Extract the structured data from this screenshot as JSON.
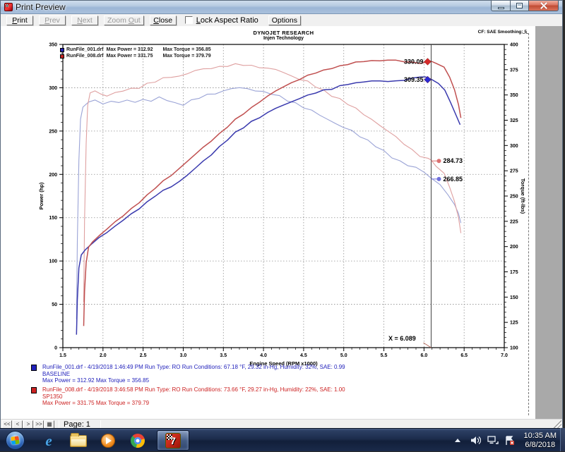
{
  "window": {
    "title": "Print Preview"
  },
  "toolbar": {
    "print": {
      "accel": "P",
      "rest": "rint"
    },
    "prev": {
      "accel": "P",
      "rest": "rev"
    },
    "next": {
      "accel": "N",
      "rest": "ext"
    },
    "zoom_out": {
      "pre": "Zoom ",
      "accel": "O",
      "rest": "ut"
    },
    "close": {
      "accel": "C",
      "rest": "lose"
    },
    "lock_aspect": {
      "accel": "L",
      "rest": "ock Aspect Ratio"
    },
    "options": "Options"
  },
  "statusbar": {
    "nav": [
      "<<",
      "<",
      ">",
      ">>"
    ],
    "page_icon": "▦",
    "page_label": "Page: 1"
  },
  "taskbar": {
    "ie_glyph": "e",
    "winpep_glyph": "7",
    "clock_time": "10:35 AM",
    "clock_date": "6/8/2018"
  },
  "page": {
    "info_blocks": [
      {
        "color": "#2222bb",
        "line1": "RunFile_001.drf - 4/19/2018 1:46:49 PM  Run Type: RO  Run Conditions: 67.18 °F, 29.32 in-Hg,  Humidity:  32%, SAE: 0.99",
        "line2": "BASELINE",
        "line3": "Max Power = 312.92  Max Torque = 356.85"
      },
      {
        "color": "#cc2222",
        "line1": "RunFile_008.drf - 4/19/2018 3:46:58 PM  Run Type: RO  Run Conditions: 73.66 °F, 29.27 in-Hg,  Humidity:  22%, SAE: 1.00",
        "line2": "SP1350",
        "line3": "Max Power = 331.75  Max Torque = 379.79"
      }
    ]
  },
  "chart_data": {
    "type": "line",
    "title": "DYNOJET RESEARCH",
    "subtitle": "Injen Technology",
    "corner_note": "CF: SAE  Smoothing: 5",
    "xlabel": "Engine Speed (RPM x1000)",
    "ylabel_left": "Power (hp)",
    "ylabel_right": "Torque (ft-lbs)",
    "xlim": [
      1.5,
      7.0
    ],
    "xtick_step": 0.5,
    "xminor_step": 0.1,
    "ylim_left": [
      0,
      350
    ],
    "ytick_left": 50,
    "yminor_left": 10,
    "ylim_right": [
      100,
      400
    ],
    "ytick_right": 25,
    "yminor_right": 5,
    "grid": true,
    "cursor_x": 6.089,
    "cursor_label": "X = 6.089",
    "legend_position": "top-left",
    "legend": [
      {
        "color": "#2323b4",
        "file": "RunFile_001.drf",
        "power_text": "Max Power = 312.92",
        "torque_text": "Max Torque = 356.85"
      },
      {
        "color": "#c22323",
        "file": "RunFile_008.drf",
        "power_text": "Max Power = 331.75",
        "torque_text": "Max Torque = 379.79"
      }
    ],
    "callouts": [
      {
        "text": "330.09",
        "axis": "left",
        "value": 330.09,
        "side": "left",
        "shape": "diamond",
        "color": "#d42a2a"
      },
      {
        "text": "309.35",
        "axis": "left",
        "value": 309.35,
        "side": "left",
        "shape": "diamond",
        "color": "#2a2ad4"
      },
      {
        "text": "284.73",
        "axis": "right",
        "value": 284.73,
        "side": "right",
        "shape": "dot",
        "color": "#dc7070"
      },
      {
        "text": "266.85",
        "axis": "right",
        "value": 266.85,
        "side": "right",
        "shape": "dot",
        "color": "#7070dc"
      }
    ],
    "series": [
      {
        "name": "blue_torque",
        "axis": "right",
        "color": "#9aa3d6",
        "width": 1.1,
        "points": [
          [
            1.67,
            128
          ],
          [
            1.68,
            205
          ],
          [
            1.7,
            285
          ],
          [
            1.72,
            326
          ],
          [
            1.75,
            338
          ],
          [
            1.82,
            343
          ],
          [
            1.9,
            345
          ],
          [
            2.0,
            341
          ],
          [
            2.1,
            344
          ],
          [
            2.2,
            342
          ],
          [
            2.3,
            345
          ],
          [
            2.4,
            343
          ],
          [
            2.5,
            346
          ],
          [
            2.6,
            344
          ],
          [
            2.7,
            347
          ],
          [
            2.8,
            345
          ],
          [
            2.9,
            342
          ],
          [
            3.0,
            341
          ],
          [
            3.1,
            344
          ],
          [
            3.2,
            347
          ],
          [
            3.3,
            350
          ],
          [
            3.4,
            352
          ],
          [
            3.5,
            354
          ],
          [
            3.6,
            356
          ],
          [
            3.7,
            356.85
          ],
          [
            3.8,
            356
          ],
          [
            3.9,
            355
          ],
          [
            4.0,
            353
          ],
          [
            4.1,
            351
          ],
          [
            4.2,
            348
          ],
          [
            4.3,
            345
          ],
          [
            4.4,
            342
          ],
          [
            4.5,
            338
          ],
          [
            4.6,
            334
          ],
          [
            4.7,
            330
          ],
          [
            4.8,
            326
          ],
          [
            4.9,
            322
          ],
          [
            5.0,
            318
          ],
          [
            5.1,
            314
          ],
          [
            5.2,
            309
          ],
          [
            5.3,
            305
          ],
          [
            5.4,
            300
          ],
          [
            5.5,
            294
          ],
          [
            5.6,
            288
          ],
          [
            5.7,
            284
          ],
          [
            5.8,
            281
          ],
          [
            5.9,
            278.5
          ],
          [
            6.0,
            273.5
          ],
          [
            6.089,
            266.85
          ],
          [
            6.2,
            261
          ],
          [
            6.3,
            252
          ],
          [
            6.38,
            242
          ],
          [
            6.43,
            232
          ],
          [
            6.46,
            223
          ]
        ]
      },
      {
        "name": "red_torque",
        "axis": "right",
        "color": "#dfa0a0",
        "width": 1.1,
        "points": [
          [
            1.76,
            145
          ],
          [
            1.77,
            225
          ],
          [
            1.79,
            302
          ],
          [
            1.81,
            340
          ],
          [
            1.84,
            352
          ],
          [
            1.9,
            354
          ],
          [
            1.97,
            351
          ],
          [
            2.05,
            349
          ],
          [
            2.15,
            352
          ],
          [
            2.25,
            354
          ],
          [
            2.35,
            356
          ],
          [
            2.45,
            358
          ],
          [
            2.55,
            361
          ],
          [
            2.65,
            363
          ],
          [
            2.75,
            366
          ],
          [
            2.85,
            368
          ],
          [
            2.95,
            369
          ],
          [
            3.05,
            371
          ],
          [
            3.15,
            374
          ],
          [
            3.25,
            375
          ],
          [
            3.35,
            377
          ],
          [
            3.45,
            378
          ],
          [
            3.55,
            379
          ],
          [
            3.65,
            379.5
          ],
          [
            3.75,
            379.79
          ],
          [
            3.85,
            379
          ],
          [
            3.95,
            378
          ],
          [
            4.05,
            376
          ],
          [
            4.15,
            375
          ],
          [
            4.25,
            372
          ],
          [
            4.35,
            369
          ],
          [
            4.45,
            366
          ],
          [
            4.55,
            363
          ],
          [
            4.65,
            358
          ],
          [
            4.75,
            354
          ],
          [
            4.85,
            350
          ],
          [
            4.95,
            346
          ],
          [
            5.05,
            341
          ],
          [
            5.15,
            336
          ],
          [
            5.25,
            331
          ],
          [
            5.35,
            326
          ],
          [
            5.45,
            320
          ],
          [
            5.55,
            314
          ],
          [
            5.65,
            308
          ],
          [
            5.75,
            302
          ],
          [
            5.85,
            296
          ],
          [
            5.95,
            290
          ],
          [
            6.05,
            286
          ],
          [
            6.089,
            284.73
          ],
          [
            6.15,
            280
          ],
          [
            6.25,
            272
          ],
          [
            6.32,
            260
          ],
          [
            6.38,
            245
          ],
          [
            6.43,
            228
          ],
          [
            6.46,
            213
          ]
        ]
      },
      {
        "name": "blue_power",
        "axis": "left",
        "color": "#3a3aae",
        "width": 1.5,
        "points": [
          [
            1.67,
            15
          ],
          [
            1.68,
            55
          ],
          [
            1.7,
            92
          ],
          [
            1.73,
            107
          ],
          [
            1.78,
            113
          ],
          [
            1.85,
            119
          ],
          [
            1.95,
            127
          ],
          [
            2.05,
            133
          ],
          [
            2.15,
            140
          ],
          [
            2.25,
            147
          ],
          [
            2.35,
            154
          ],
          [
            2.45,
            161
          ],
          [
            2.55,
            168
          ],
          [
            2.65,
            175
          ],
          [
            2.75,
            181
          ],
          [
            2.85,
            186
          ],
          [
            2.95,
            192
          ],
          [
            3.05,
            199
          ],
          [
            3.15,
            207
          ],
          [
            3.25,
            215
          ],
          [
            3.35,
            223
          ],
          [
            3.45,
            232
          ],
          [
            3.55,
            240
          ],
          [
            3.65,
            248
          ],
          [
            3.75,
            254
          ],
          [
            3.85,
            261
          ],
          [
            3.95,
            266
          ],
          [
            4.05,
            271
          ],
          [
            4.15,
            276
          ],
          [
            4.25,
            280
          ],
          [
            4.35,
            284
          ],
          [
            4.45,
            288
          ],
          [
            4.55,
            291
          ],
          [
            4.65,
            294
          ],
          [
            4.75,
            297
          ],
          [
            4.85,
            299
          ],
          [
            4.95,
            302
          ],
          [
            5.05,
            304
          ],
          [
            5.15,
            305
          ],
          [
            5.25,
            307
          ],
          [
            5.35,
            308
          ],
          [
            5.45,
            308
          ],
          [
            5.55,
            307
          ],
          [
            5.65,
            307.5
          ],
          [
            5.75,
            309
          ],
          [
            5.85,
            311
          ],
          [
            5.95,
            312.9
          ],
          [
            6.02,
            312
          ],
          [
            6.089,
            309.35
          ],
          [
            6.18,
            305
          ],
          [
            6.26,
            297
          ],
          [
            6.33,
            284
          ],
          [
            6.4,
            268
          ],
          [
            6.45,
            257
          ]
        ]
      },
      {
        "name": "red_power",
        "axis": "left",
        "color": "#c05050",
        "width": 1.5,
        "points": [
          [
            1.76,
            25
          ],
          [
            1.77,
            65
          ],
          [
            1.79,
            98
          ],
          [
            1.82,
            116
          ],
          [
            1.87,
            122
          ],
          [
            1.95,
            129
          ],
          [
            2.05,
            137
          ],
          [
            2.15,
            145
          ],
          [
            2.25,
            152
          ],
          [
            2.35,
            160
          ],
          [
            2.45,
            168
          ],
          [
            2.55,
            176
          ],
          [
            2.65,
            184
          ],
          [
            2.75,
            192
          ],
          [
            2.85,
            199
          ],
          [
            2.95,
            207
          ],
          [
            3.05,
            215
          ],
          [
            3.15,
            223
          ],
          [
            3.25,
            231
          ],
          [
            3.35,
            239
          ],
          [
            3.45,
            247
          ],
          [
            3.55,
            255
          ],
          [
            3.65,
            263
          ],
          [
            3.75,
            270
          ],
          [
            3.85,
            277
          ],
          [
            3.95,
            284
          ],
          [
            4.05,
            290
          ],
          [
            4.15,
            296
          ],
          [
            4.25,
            301
          ],
          [
            4.35,
            306
          ],
          [
            4.45,
            310
          ],
          [
            4.55,
            314
          ],
          [
            4.65,
            317
          ],
          [
            4.75,
            320
          ],
          [
            4.85,
            323
          ],
          [
            4.95,
            325
          ],
          [
            5.05,
            327
          ],
          [
            5.15,
            329
          ],
          [
            5.25,
            330.5
          ],
          [
            5.35,
            331.5
          ],
          [
            5.45,
            331.2
          ],
          [
            5.55,
            331.75
          ],
          [
            5.65,
            331.3
          ],
          [
            5.75,
            330.5
          ],
          [
            5.85,
            329.5
          ],
          [
            5.95,
            328.6
          ],
          [
            6.05,
            329.2
          ],
          [
            6.089,
            330.09
          ],
          [
            6.15,
            328.5
          ],
          [
            6.25,
            323.5
          ],
          [
            6.32,
            313
          ],
          [
            6.38,
            298
          ],
          [
            6.43,
            280
          ],
          [
            6.46,
            265
          ]
        ]
      }
    ]
  }
}
